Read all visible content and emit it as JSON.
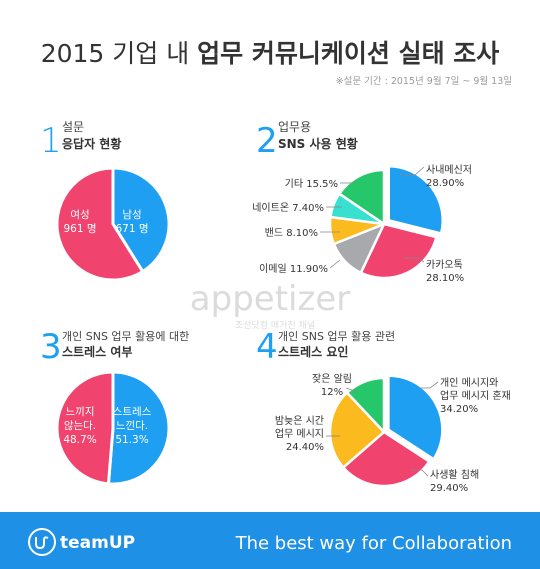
{
  "header": {
    "title_plain": "2015 기업 내 ",
    "title_bold": "업무 커뮤니케이션 실태 조사",
    "survey_period": "※설문 기간 : 2015년 9월 7일 ~ 9월 13일"
  },
  "sections": [
    {
      "number": "1",
      "line1": "설문",
      "line2": "응답자 현황"
    },
    {
      "number": "2",
      "line1": "업무용",
      "line2": "SNS 사용 현황"
    },
    {
      "number": "3",
      "line1": "개인 SNS 업무 활용에 대한",
      "line2": "스트레스 여부"
    },
    {
      "number": "4",
      "line1": "개인 SNS 업무 활용 관련",
      "line2": "스트레스 요인"
    }
  ],
  "watermark": {
    "brand": "appetizer",
    "sub": "조선닷컴 매거진 채널"
  },
  "footer": {
    "brand": "teamUP",
    "tagline": "The best way for Collaboration"
  },
  "colors": {
    "blue": "#1e9ff2",
    "pink": "#f0436e",
    "yellow": "#fbbb1f",
    "gray": "#a7a9ac",
    "teal": "#38e0cf",
    "green": "#26c76a",
    "footer_bg": "#1e90e6"
  },
  "chart_data": [
    {
      "type": "pie",
      "title": "응답자 현황",
      "slices": [
        {
          "label": "남성",
          "value": 671,
          "value_label": "671 명",
          "color": "#1e9ff2"
        },
        {
          "label": "여성",
          "value": 961,
          "value_label": "961 명",
          "color": "#f0436e"
        }
      ]
    },
    {
      "type": "pie",
      "title": "SNS 사용 현황",
      "slices": [
        {
          "label": "사내메신저",
          "value": 28.9,
          "value_label": "28.90%",
          "color": "#1e9ff2"
        },
        {
          "label": "카카오톡",
          "value": 28.1,
          "value_label": "28.10%",
          "color": "#f0436e"
        },
        {
          "label": "이메일",
          "value": 11.9,
          "value_label": "11.90%",
          "color": "#a7a9ac"
        },
        {
          "label": "밴드",
          "value": 8.1,
          "value_label": "8.10%",
          "color": "#fbbb1f"
        },
        {
          "label": "네이트온",
          "value": 7.4,
          "value_label": "7.40%",
          "color": "#38e0cf"
        },
        {
          "label": "기타",
          "value": 15.5,
          "value_label": "15.5%",
          "color": "#26c76a"
        }
      ]
    },
    {
      "type": "pie",
      "title": "스트레스 여부",
      "slices": [
        {
          "label": "스트레스 느낀다.",
          "value": 51.3,
          "value_label": "51.3%",
          "color": "#1e9ff2"
        },
        {
          "label": "느끼지 않는다.",
          "value": 48.7,
          "value_label": "48.7%",
          "color": "#f0436e"
        }
      ]
    },
    {
      "type": "pie",
      "title": "스트레스 요인",
      "slices": [
        {
          "label": "개인 메시지와 업무 메시지 혼재",
          "value": 34.2,
          "value_label": "34.20%",
          "color": "#1e9ff2"
        },
        {
          "label": "사생활 침해",
          "value": 29.4,
          "value_label": "29.40%",
          "color": "#f0436e"
        },
        {
          "label": "밤늦은 시간 업무 메시지",
          "value": 24.4,
          "value_label": "24.40%",
          "color": "#fbbb1f"
        },
        {
          "label": "잦은 알림",
          "value": 12,
          "value_label": "12%",
          "color": "#26c76a"
        }
      ]
    }
  ]
}
